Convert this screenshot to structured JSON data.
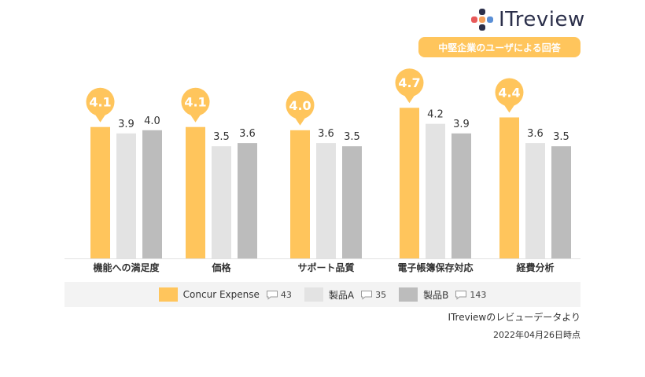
{
  "brand": {
    "logo_text": "ITreview"
  },
  "badge": {
    "label": "中堅企業のユーザによる回答"
  },
  "chart_data": {
    "type": "bar",
    "categories": [
      "機能への満足度",
      "価格",
      "サポート品質",
      "電子帳簿保存対応",
      "経費分析"
    ],
    "series": [
      {
        "name": "Concur Expense",
        "values": [
          4.1,
          4.1,
          4.0,
          4.7,
          4.4
        ],
        "color": "#ffc55c",
        "review_count": "43"
      },
      {
        "name": "製品A",
        "values": [
          3.9,
          3.5,
          3.6,
          4.2,
          3.6
        ],
        "color": "#e3e3e3",
        "review_count": "35"
      },
      {
        "name": "製品B",
        "values": [
          4.0,
          3.6,
          3.5,
          3.9,
          3.5
        ],
        "color": "#bcbcbc",
        "review_count": "143"
      }
    ],
    "value_labels": [
      [
        "4.1",
        "4.1",
        "4.0",
        "4.7",
        "4.4"
      ],
      [
        "3.9",
        "3.5",
        "3.6",
        "4.2",
        "3.6"
      ],
      [
        "4.0",
        "3.6",
        "3.5",
        "3.9",
        "3.5"
      ]
    ],
    "ylim": [
      0,
      5
    ],
    "grid": false,
    "legend_position": "bottom",
    "highlight_series": "Concur Expense"
  },
  "footer": {
    "source": "ITreviewのレビューデータより",
    "date": "2022年04月26日時点"
  }
}
